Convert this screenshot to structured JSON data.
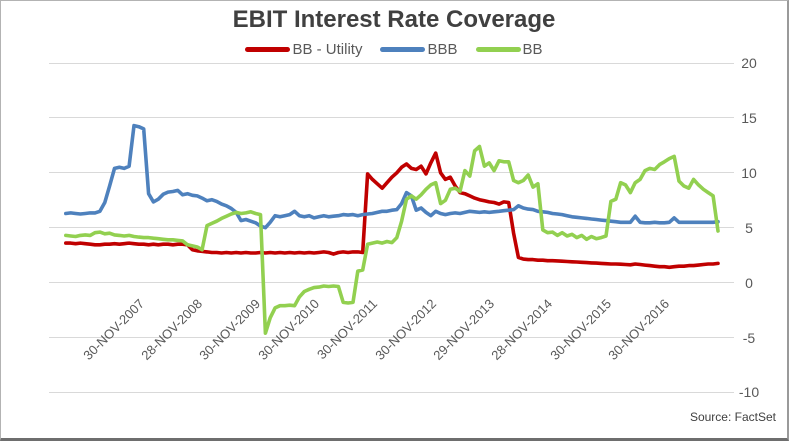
{
  "title": "EBIT Interest Rate Coverage",
  "source_note": "Source: FactSet",
  "legend": {
    "items": [
      {
        "label": "BB - Utility",
        "color": "#C00000"
      },
      {
        "label": "BBB",
        "color": "#4E81BD"
      },
      {
        "label": "BB",
        "color": "#92D050"
      }
    ]
  },
  "chart_data": {
    "type": "line",
    "title": "EBIT Interest Rate Coverage",
    "legend_position": "top",
    "grid": "horizontal-only",
    "grid_color": "#d9d9d9",
    "y_axis": {
      "side": "right",
      "ticks": [
        20,
        15,
        10,
        5,
        0,
        -5,
        -10
      ],
      "ylim": [
        -10,
        20
      ]
    },
    "x_axis": {
      "tick_labels": [
        "30-NOV-2007",
        "28-NOV-2008",
        "30-NOV-2009",
        "30-NOV-2010",
        "30-NOV-2011",
        "30-NOV-2012",
        "29-NOV-2013",
        "28-NOV-2014",
        "30-NOV-2015",
        "30-NOV-2016"
      ],
      "tick_years": [
        2007.917,
        2008.917,
        2009.917,
        2010.917,
        2011.917,
        2012.917,
        2013.917,
        2014.917,
        2015.917,
        2016.917
      ],
      "start_year": 2006.63,
      "step_years": 0.0833333
    },
    "series": [
      {
        "name": "BB - Utility",
        "color": "#C00000",
        "values": [
          3.6,
          3.6,
          3.55,
          3.6,
          3.55,
          3.5,
          3.45,
          3.45,
          3.5,
          3.5,
          3.55,
          3.5,
          3.55,
          3.6,
          3.55,
          3.5,
          3.5,
          3.45,
          3.5,
          3.45,
          3.5,
          3.5,
          3.45,
          3.5,
          3.5,
          3.45,
          3.0,
          2.9,
          2.85,
          2.8,
          2.75,
          2.75,
          2.7,
          2.75,
          2.7,
          2.75,
          2.7,
          2.75,
          2.7,
          2.7,
          2.75,
          2.7,
          2.75,
          2.7,
          2.75,
          2.7,
          2.75,
          2.7,
          2.75,
          2.7,
          2.75,
          2.7,
          2.75,
          2.8,
          2.75,
          2.6,
          2.75,
          2.8,
          2.75,
          2.8,
          2.8,
          2.75,
          9.9,
          9.4,
          9.0,
          8.6,
          9.1,
          9.6,
          10.0,
          10.5,
          10.8,
          10.4,
          10.3,
          10.6,
          9.9,
          10.9,
          11.8,
          10.0,
          9.4,
          9.6,
          8.8,
          8.2,
          8.1,
          7.9,
          7.7,
          7.55,
          7.45,
          7.35,
          7.3,
          7.15,
          7.35,
          7.3,
          4.5,
          2.3,
          2.15,
          2.1,
          2.1,
          2.05,
          2.05,
          2.0,
          2.0,
          1.98,
          1.95,
          1.93,
          1.9,
          1.88,
          1.85,
          1.83,
          1.8,
          1.78,
          1.75,
          1.73,
          1.7,
          1.7,
          1.68,
          1.65,
          1.63,
          1.7,
          1.65,
          1.6,
          1.55,
          1.5,
          1.45,
          1.45,
          1.4,
          1.45,
          1.5,
          1.5,
          1.55,
          1.55,
          1.6,
          1.65,
          1.7,
          1.7,
          1.75
        ]
      },
      {
        "name": "BBB",
        "color": "#4E81BD",
        "values": [
          6.3,
          6.35,
          6.3,
          6.25,
          6.3,
          6.35,
          6.35,
          6.5,
          7.3,
          8.8,
          10.4,
          10.5,
          10.4,
          10.6,
          14.3,
          14.2,
          14.0,
          8.1,
          7.35,
          7.6,
          8.05,
          8.25,
          8.3,
          8.4,
          8.0,
          8.1,
          7.95,
          7.9,
          7.7,
          7.45,
          7.55,
          7.4,
          7.15,
          7.0,
          6.75,
          6.4,
          5.65,
          5.75,
          5.6,
          5.45,
          5.15,
          5.0,
          5.5,
          6.1,
          6.0,
          6.1,
          6.2,
          6.5,
          6.1,
          6.0,
          6.1,
          5.9,
          6.0,
          6.1,
          6.0,
          6.05,
          6.1,
          6.2,
          6.15,
          6.2,
          6.1,
          6.2,
          6.25,
          6.3,
          6.4,
          6.5,
          6.5,
          6.6,
          6.65,
          7.2,
          8.2,
          7.9,
          6.6,
          6.8,
          6.4,
          6.1,
          6.5,
          6.3,
          6.2,
          6.3,
          6.35,
          6.3,
          6.4,
          6.5,
          6.45,
          6.4,
          6.45,
          6.4,
          6.45,
          6.5,
          6.55,
          6.6,
          6.65,
          7.0,
          6.8,
          6.7,
          6.65,
          6.5,
          6.45,
          6.4,
          6.3,
          6.25,
          6.2,
          6.1,
          6.0,
          5.95,
          5.9,
          5.85,
          5.8,
          5.75,
          5.7,
          5.65,
          5.6,
          5.55,
          5.5,
          5.5,
          5.5,
          6.05,
          5.5,
          5.45,
          5.45,
          5.5,
          5.45,
          5.45,
          5.5,
          5.9,
          5.5,
          5.5,
          5.5,
          5.5,
          5.5,
          5.5,
          5.5,
          5.5,
          5.55
        ]
      },
      {
        "name": "BB",
        "color": "#92D050",
        "values": [
          4.3,
          4.25,
          4.2,
          4.3,
          4.35,
          4.3,
          4.55,
          4.6,
          4.45,
          4.5,
          4.35,
          4.3,
          4.25,
          4.3,
          4.2,
          4.15,
          4.1,
          4.1,
          4.05,
          4.0,
          3.95,
          3.9,
          3.9,
          3.85,
          3.8,
          3.45,
          3.35,
          3.25,
          3.0,
          5.2,
          5.4,
          5.6,
          5.85,
          6.05,
          6.25,
          6.4,
          6.3,
          6.35,
          6.45,
          6.3,
          6.2,
          -4.6,
          -3.2,
          -2.3,
          -2.1,
          -2.1,
          -2.05,
          -2.1,
          -1.3,
          -0.8,
          -0.6,
          -0.45,
          -0.4,
          -0.3,
          -0.35,
          -0.3,
          -0.35,
          -1.8,
          -1.85,
          -1.8,
          1.05,
          1.15,
          3.5,
          3.6,
          3.7,
          3.6,
          3.75,
          3.65,
          4.1,
          5.6,
          7.6,
          7.9,
          7.6,
          8.0,
          8.5,
          8.9,
          9.1,
          7.2,
          7.5,
          8.5,
          8.6,
          8.3,
          10.2,
          9.7,
          12.0,
          12.4,
          10.6,
          10.9,
          10.2,
          11.1,
          11.0,
          11.0,
          9.3,
          9.1,
          9.3,
          9.8,
          8.7,
          9.0,
          4.8,
          4.55,
          4.6,
          4.3,
          4.55,
          4.25,
          4.4,
          4.1,
          4.3,
          3.95,
          4.2,
          4.0,
          4.1,
          4.25,
          7.4,
          7.6,
          9.1,
          8.9,
          8.2,
          9.1,
          9.4,
          10.2,
          10.4,
          10.3,
          10.75,
          11.0,
          11.3,
          11.5,
          9.25,
          8.8,
          8.6,
          9.4,
          8.9,
          8.5,
          8.2,
          7.9,
          4.7
        ]
      }
    ]
  }
}
